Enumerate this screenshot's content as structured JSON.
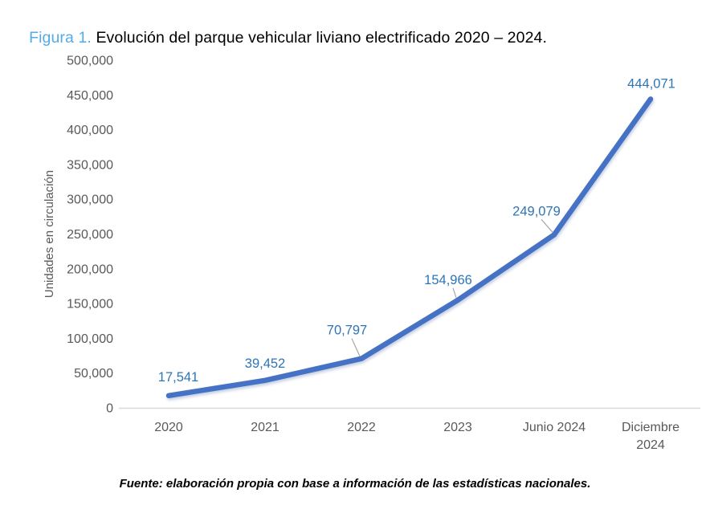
{
  "title": {
    "prefix": "Figura 1.",
    "text": " Evolución del parque vehicular liviano electrificado 2020 – 2024."
  },
  "source_note": "Fuente: elaboración propia con base a información de las estadísticas nacionales.",
  "colors": {
    "figure_label": "#53ABE8",
    "title_text": "#000000",
    "line": "#4472C4",
    "data_label": "#2E75B6",
    "axis_text": "#595959",
    "axis_line": "#D9D9D9",
    "leader_line": "#A6A6A6",
    "background": "#FFFFFF"
  },
  "chart_data": {
    "type": "line",
    "title": "",
    "categories": [
      "2020",
      "2021",
      "2022",
      "2023",
      "Junio 2024",
      "Diciembre\n2024"
    ],
    "values": [
      17541,
      39452,
      70797,
      154966,
      249079,
      444071
    ],
    "data_labels": [
      "17,541",
      "39,452",
      "70,797",
      "154,966",
      "249,079",
      "444,071"
    ],
    "xlabel": "",
    "ylabel": "Unidades en circulación",
    "ylim": [
      0,
      500000
    ],
    "y_tick_step": 50000,
    "y_tick_labels": [
      "0",
      "50,000",
      "100,000",
      "150,000",
      "200,000",
      "250,000",
      "300,000",
      "350,000",
      "400,000",
      "450,000",
      "500,000"
    ],
    "grid": false,
    "legend": "none"
  }
}
